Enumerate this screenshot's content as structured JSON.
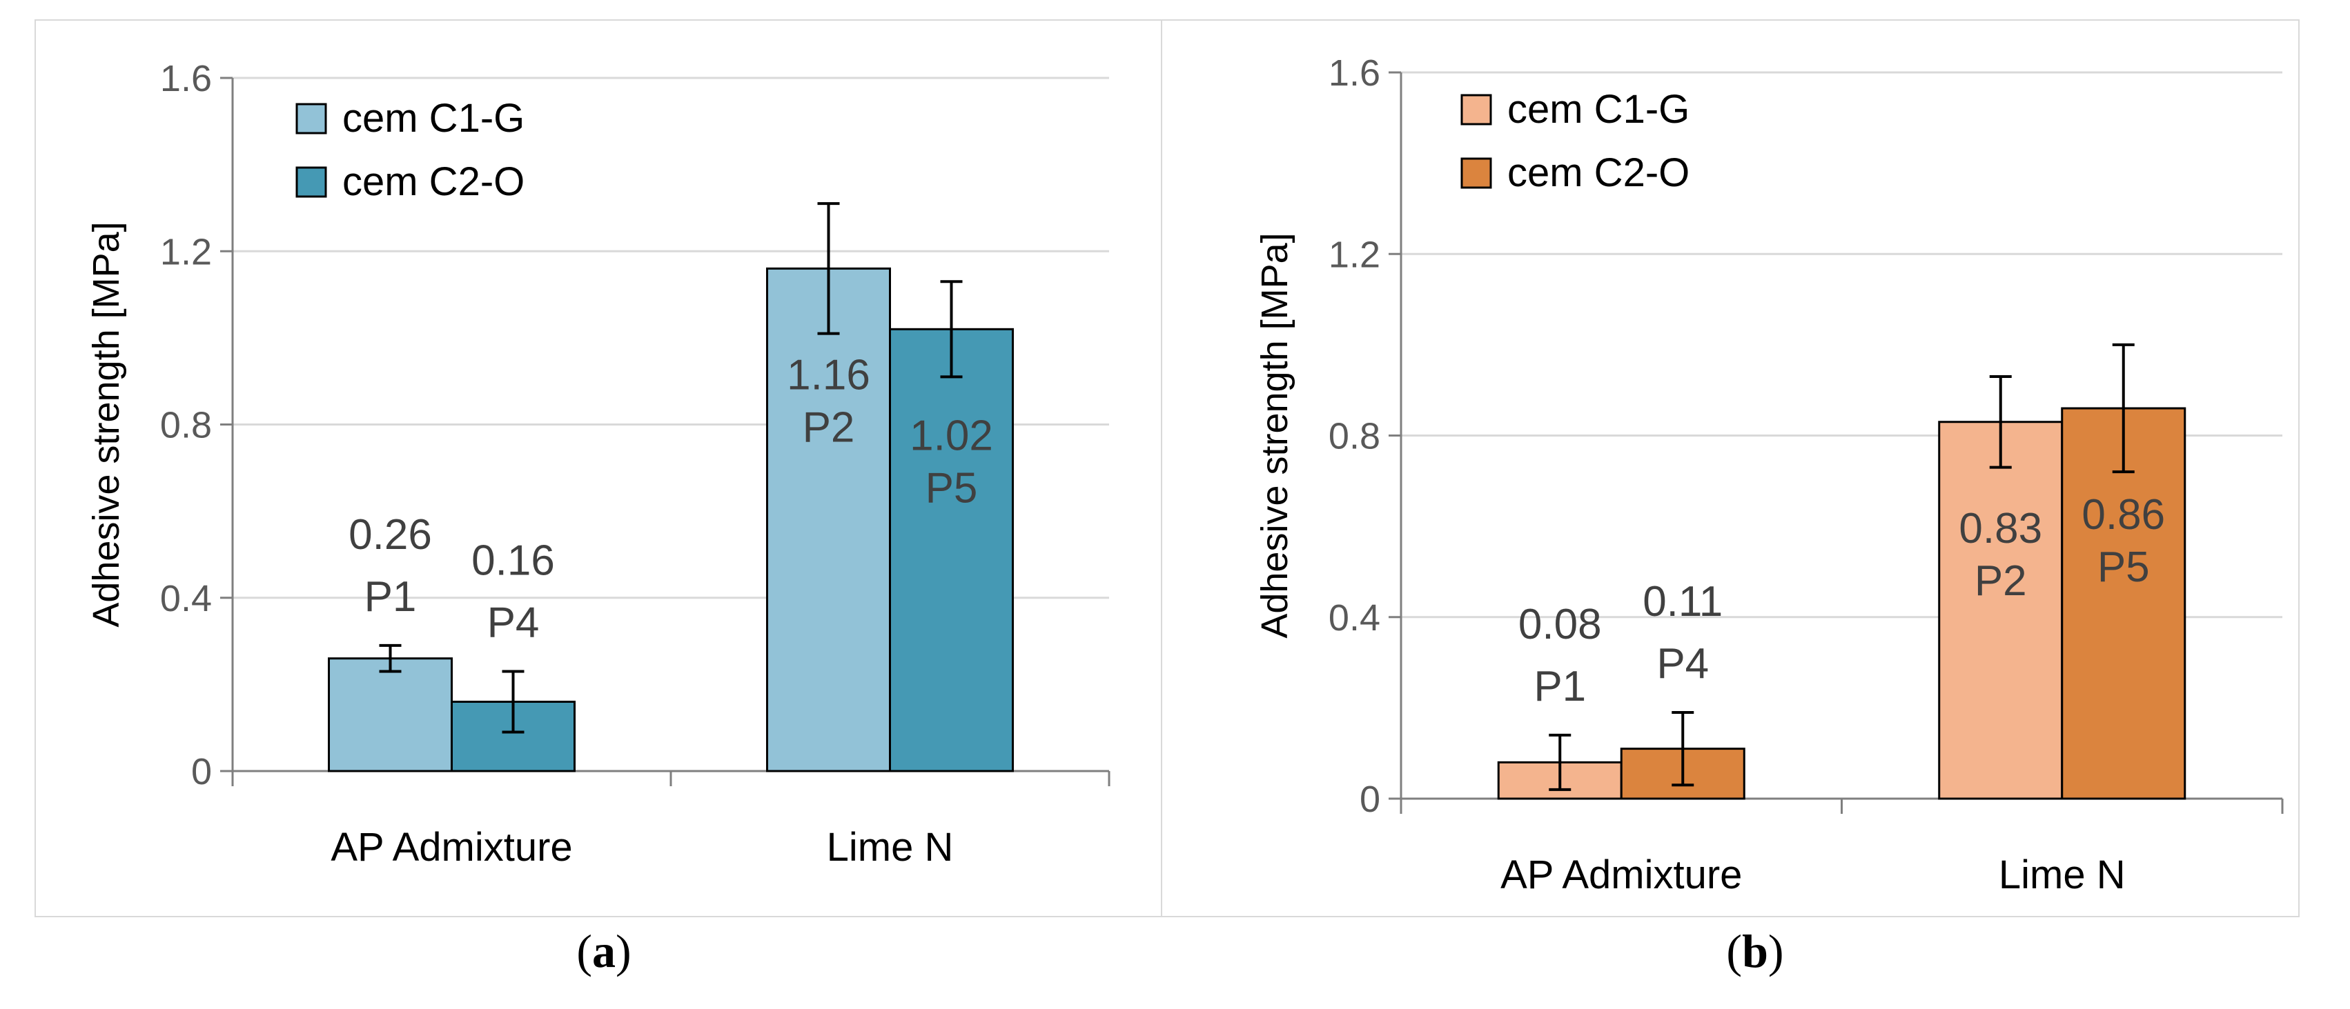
{
  "chart_data": [
    {
      "type": "bar",
      "panel_label": "a",
      "ylabel": "Adhesive strength  [MPa]",
      "xlabel": "",
      "ylim": [
        0,
        1.6
      ],
      "yticks": [
        0,
        0.4,
        0.8,
        1.2,
        1.6
      ],
      "ytick_labels": [
        "0",
        "0.4",
        "0.8",
        "1.2",
        "1.6"
      ],
      "grid": true,
      "legend_position": "top-left",
      "categories": [
        "AP Admixture",
        "Lime N"
      ],
      "series": [
        {
          "name": "cem C1-G",
          "color": "#92c2d7",
          "values": [
            0.26,
            1.16
          ],
          "errors": [
            0.03,
            0.15
          ],
          "labels": [
            "0.26",
            "1.16"
          ],
          "codes": [
            "P1",
            "P2"
          ]
        },
        {
          "name": "cem C2-O",
          "color": "#4599b4",
          "values": [
            0.16,
            1.02
          ],
          "errors": [
            0.07,
            0.11
          ],
          "labels": [
            "0.16",
            "1.02"
          ],
          "codes": [
            "P4",
            "P5"
          ]
        }
      ]
    },
    {
      "type": "bar",
      "panel_label": "b",
      "ylabel": "Adhesive strength  [MPa]",
      "xlabel": "",
      "ylim": [
        0,
        1.6
      ],
      "yticks": [
        0,
        0.4,
        0.8,
        1.2,
        1.6
      ],
      "ytick_labels": [
        "0",
        "0.4",
        "0.8",
        "1.2",
        "1.6"
      ],
      "grid": true,
      "legend_position": "top-left",
      "categories": [
        "AP Admixture",
        "Lime N"
      ],
      "series": [
        {
          "name": "cem C1-G",
          "color": "#f4b48e",
          "values": [
            0.08,
            0.83
          ],
          "errors": [
            0.06,
            0.1
          ],
          "labels": [
            "0.08",
            "0.83"
          ],
          "codes": [
            "P1",
            "P2"
          ]
        },
        {
          "name": "cem C2-O",
          "color": "#db843e",
          "values": [
            0.11,
            0.86
          ],
          "errors": [
            0.08,
            0.14
          ],
          "labels": [
            "0.11",
            "0.86"
          ],
          "codes": [
            "P4",
            "P5"
          ]
        }
      ]
    }
  ]
}
